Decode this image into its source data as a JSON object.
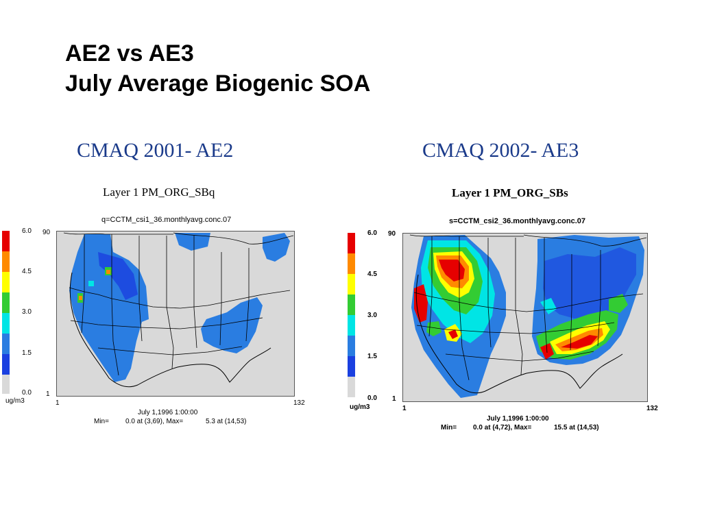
{
  "slide": {
    "title_line1": "AE2 vs AE3",
    "title_line2": "July Average Biogenic SOA"
  },
  "colors": {
    "heading": "#1a3a8a",
    "colorbar_bins": [
      "#e60000",
      "#ff8a00",
      "#ffff00",
      "#33cc33",
      "#00e5e5",
      "#2a7de1",
      "#1a40e0",
      "#d9d9d9"
    ],
    "background": "#d9d9d9"
  },
  "panels": [
    {
      "heading": "CMAQ 2001- AE2",
      "layer_title": "Layer 1  PM_ORG_SBq",
      "file": "q=CCTM_csi1_36.monthlyavg.conc.07",
      "colorbar_ticks": [
        "6.0",
        "4.5",
        "3.0",
        "1.5",
        "0.0"
      ],
      "unit": "ug/m3",
      "y_top": "90",
      "y_bottom": "1",
      "x_left": "1",
      "x_right": "132",
      "date": "July 1,1996 1:00:00",
      "min_label": "Min=",
      "min_value": "0.0 at (3,69), Max=",
      "max_value": "5.3 at (14,53)"
    },
    {
      "heading": "CMAQ 2002- AE3",
      "layer_title": "Layer 1  PM_ORG_SBs",
      "file": "s=CCTM_csi2_36.monthlyavg.conc.07",
      "colorbar_ticks": [
        "6.0",
        "4.5",
        "3.0",
        "1.5",
        "0.0"
      ],
      "unit": "ug/m3",
      "y_top": "90",
      "y_bottom": "1",
      "x_left": "1",
      "x_right": "132",
      "date": "July 1,1996 1:00:00",
      "min_label": "Min=",
      "min_value": "0.0 at (4,72), Max=",
      "max_value": "15.5 at (14,53)"
    }
  ]
}
